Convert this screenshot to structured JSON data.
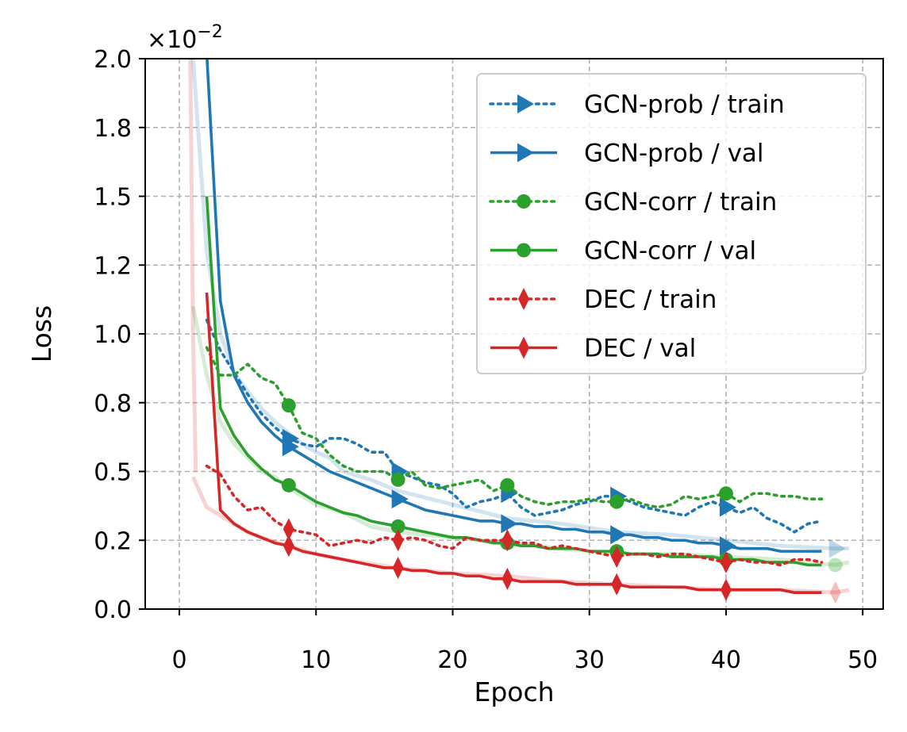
{
  "chart_data": {
    "type": "line",
    "title": "",
    "xlabel": "Epoch",
    "ylabel": "Loss",
    "scale_label": "×10",
    "scale_exponent": "−2",
    "xlim": [
      -2.5,
      51.5
    ],
    "ylim": [
      0,
      2.0
    ],
    "xticks": [
      0,
      10,
      20,
      30,
      40,
      50
    ],
    "xtick_labels": [
      "0",
      "10",
      "20",
      "30",
      "40",
      "50"
    ],
    "yticks": [
      0.0,
      0.25,
      0.5,
      0.75,
      1.0,
      1.25,
      1.5,
      1.75,
      2.0
    ],
    "ytick_labels": [
      "0.0",
      "0.2",
      "0.5",
      "0.8",
      "1.0",
      "1.2",
      "1.5",
      "1.8",
      "2.0"
    ],
    "grid": true,
    "legend_position": "top-right",
    "series": [
      {
        "name": "GCN-prob / train",
        "color": "#1f77b4",
        "style": "dotted",
        "marker": "triangle-right",
        "x": [
          2,
          3,
          4,
          5,
          6,
          7,
          8,
          9,
          10,
          11,
          12,
          13,
          14,
          15,
          16,
          17,
          18,
          19,
          20,
          21,
          22,
          23,
          24,
          25,
          26,
          27,
          28,
          29,
          30,
          31,
          32,
          33,
          34,
          35,
          36,
          37,
          38,
          39,
          40,
          41,
          42,
          43,
          44,
          45,
          46,
          47
        ],
        "values": [
          1.05,
          0.94,
          0.86,
          0.78,
          0.71,
          0.66,
          0.62,
          0.6,
          0.59,
          0.62,
          0.62,
          0.6,
          0.57,
          0.57,
          0.5,
          0.48,
          0.46,
          0.45,
          0.42,
          0.37,
          0.39,
          0.4,
          0.42,
          0.37,
          0.34,
          0.35,
          0.36,
          0.38,
          0.39,
          0.41,
          0.41,
          0.39,
          0.37,
          0.36,
          0.35,
          0.34,
          0.37,
          0.39,
          0.37,
          0.35,
          0.37,
          0.33,
          0.31,
          0.28,
          0.31,
          0.32
        ],
        "marker_x": [
          8,
          16,
          24,
          32,
          40
        ],
        "marker_values": [
          0.62,
          0.5,
          0.42,
          0.41,
          0.37
        ]
      },
      {
        "name": "GCN-prob / val",
        "color": "#1f77b4",
        "style": "solid",
        "marker": "triangle-right",
        "x": [
          2,
          3,
          4,
          5,
          6,
          7,
          8,
          9,
          10,
          11,
          12,
          13,
          14,
          15,
          16,
          17,
          18,
          19,
          20,
          21,
          22,
          23,
          24,
          25,
          26,
          27,
          28,
          29,
          30,
          31,
          32,
          33,
          34,
          35,
          36,
          37,
          38,
          39,
          40,
          41,
          42,
          43,
          44,
          45,
          46,
          47
        ],
        "values": [
          2.02,
          1.12,
          0.85,
          0.75,
          0.68,
          0.63,
          0.59,
          0.56,
          0.53,
          0.5,
          0.48,
          0.46,
          0.44,
          0.42,
          0.4,
          0.38,
          0.36,
          0.35,
          0.34,
          0.33,
          0.32,
          0.32,
          0.31,
          0.31,
          0.3,
          0.3,
          0.29,
          0.29,
          0.28,
          0.28,
          0.27,
          0.27,
          0.26,
          0.26,
          0.25,
          0.25,
          0.24,
          0.24,
          0.23,
          0.22,
          0.22,
          0.22,
          0.21,
          0.21,
          0.21,
          0.21
        ],
        "marker_x": [
          8,
          16,
          24,
          32,
          40
        ],
        "marker_values": [
          0.59,
          0.4,
          0.31,
          0.27,
          0.23
        ]
      },
      {
        "name": "GCN-corr / train",
        "color": "#2ca02c",
        "style": "dotted",
        "marker": "circle",
        "x": [
          2,
          3,
          4,
          5,
          6,
          7,
          8,
          9,
          10,
          11,
          12,
          13,
          14,
          15,
          16,
          17,
          18,
          19,
          20,
          21,
          22,
          23,
          24,
          25,
          26,
          27,
          28,
          29,
          30,
          31,
          32,
          33,
          34,
          35,
          36,
          37,
          38,
          39,
          40,
          41,
          42,
          43,
          44,
          45,
          46,
          47
        ],
        "values": [
          0.95,
          0.85,
          0.85,
          0.89,
          0.84,
          0.82,
          0.74,
          0.64,
          0.62,
          0.56,
          0.52,
          0.5,
          0.5,
          0.5,
          0.47,
          0.5,
          0.45,
          0.44,
          0.45,
          0.46,
          0.47,
          0.43,
          0.45,
          0.41,
          0.39,
          0.38,
          0.39,
          0.39,
          0.4,
          0.39,
          0.39,
          0.4,
          0.38,
          0.37,
          0.38,
          0.41,
          0.4,
          0.41,
          0.42,
          0.39,
          0.42,
          0.42,
          0.41,
          0.41,
          0.4,
          0.4
        ],
        "marker_x": [
          8,
          16,
          24,
          32,
          40
        ],
        "marker_values": [
          0.74,
          0.47,
          0.45,
          0.39,
          0.42
        ]
      },
      {
        "name": "GCN-corr / val",
        "color": "#2ca02c",
        "style": "solid",
        "marker": "circle",
        "x": [
          2,
          3,
          4,
          5,
          6,
          7,
          8,
          9,
          10,
          11,
          12,
          13,
          14,
          15,
          16,
          17,
          18,
          19,
          20,
          21,
          22,
          23,
          24,
          25,
          26,
          27,
          28,
          29,
          30,
          31,
          32,
          33,
          34,
          35,
          36,
          37,
          38,
          39,
          40,
          41,
          42,
          43,
          44,
          45,
          46,
          47
        ],
        "values": [
          1.5,
          0.73,
          0.63,
          0.56,
          0.51,
          0.47,
          0.45,
          0.42,
          0.39,
          0.37,
          0.35,
          0.34,
          0.32,
          0.31,
          0.3,
          0.29,
          0.28,
          0.27,
          0.26,
          0.26,
          0.25,
          0.24,
          0.24,
          0.23,
          0.23,
          0.22,
          0.22,
          0.22,
          0.21,
          0.21,
          0.21,
          0.2,
          0.2,
          0.2,
          0.19,
          0.19,
          0.19,
          0.19,
          0.18,
          0.18,
          0.18,
          0.17,
          0.17,
          0.17,
          0.16,
          0.16
        ],
        "marker_x": [
          8,
          16,
          24,
          32,
          40
        ],
        "marker_values": [
          0.45,
          0.3,
          0.24,
          0.21,
          0.18
        ]
      },
      {
        "name": "DEC / train",
        "color": "#d62728",
        "style": "dotted",
        "marker": "thin-diamond",
        "x": [
          2,
          3,
          4,
          5,
          6,
          7,
          8,
          9,
          10,
          11,
          12,
          13,
          14,
          15,
          16,
          17,
          18,
          19,
          20,
          21,
          22,
          23,
          24,
          25,
          26,
          27,
          28,
          29,
          30,
          31,
          32,
          33,
          34,
          35,
          36,
          37,
          38,
          39,
          40,
          41,
          42,
          43,
          44,
          45,
          46,
          47
        ],
        "values": [
          0.52,
          0.49,
          0.41,
          0.36,
          0.37,
          0.32,
          0.29,
          0.28,
          0.27,
          0.23,
          0.24,
          0.25,
          0.24,
          0.26,
          0.25,
          0.26,
          0.25,
          0.23,
          0.22,
          0.26,
          0.25,
          0.25,
          0.25,
          0.24,
          0.24,
          0.22,
          0.23,
          0.22,
          0.21,
          0.2,
          0.19,
          0.2,
          0.2,
          0.19,
          0.2,
          0.2,
          0.19,
          0.18,
          0.17,
          0.18,
          0.17,
          0.17,
          0.16,
          0.18,
          0.18,
          0.17
        ],
        "marker_x": [
          8,
          16,
          24,
          32,
          40
        ],
        "marker_values": [
          0.29,
          0.25,
          0.25,
          0.19,
          0.17
        ]
      },
      {
        "name": "DEC / val",
        "color": "#d62728",
        "style": "solid",
        "marker": "thin-diamond",
        "x": [
          2,
          3,
          4,
          5,
          6,
          7,
          8,
          9,
          10,
          11,
          12,
          13,
          14,
          15,
          16,
          17,
          18,
          19,
          20,
          21,
          22,
          23,
          24,
          25,
          26,
          27,
          28,
          29,
          30,
          31,
          32,
          33,
          34,
          35,
          36,
          37,
          38,
          39,
          40,
          41,
          42,
          43,
          44,
          45,
          46,
          47
        ],
        "values": [
          1.15,
          0.36,
          0.31,
          0.28,
          0.26,
          0.24,
          0.23,
          0.21,
          0.2,
          0.19,
          0.18,
          0.17,
          0.16,
          0.15,
          0.15,
          0.14,
          0.14,
          0.13,
          0.13,
          0.12,
          0.12,
          0.11,
          0.11,
          0.1,
          0.1,
          0.1,
          0.1,
          0.09,
          0.09,
          0.09,
          0.09,
          0.08,
          0.08,
          0.08,
          0.08,
          0.08,
          0.07,
          0.07,
          0.07,
          0.07,
          0.07,
          0.07,
          0.07,
          0.06,
          0.06,
          0.06
        ],
        "marker_x": [
          8,
          16,
          24,
          32,
          40
        ],
        "marker_values": [
          0.23,
          0.15,
          0.11,
          0.09,
          0.07
        ]
      }
    ],
    "faded_series": [
      {
        "color": "#1f77b4",
        "x": [
          1,
          2,
          3,
          4,
          5,
          6,
          7,
          8,
          9,
          10,
          11,
          12,
          14,
          16,
          20,
          24,
          28,
          32,
          36,
          40,
          44,
          48,
          49
        ],
        "values": [
          2.0,
          1.3,
          1.0,
          0.86,
          0.79,
          0.73,
          0.68,
          0.64,
          0.6,
          0.57,
          0.55,
          0.5,
          0.47,
          0.43,
          0.38,
          0.33,
          0.31,
          0.28,
          0.27,
          0.25,
          0.23,
          0.22,
          0.22
        ],
        "end_marker": true
      },
      {
        "color": "#2ca02c",
        "x": [
          1,
          2,
          3,
          4,
          5,
          6,
          7,
          8,
          10,
          12,
          14,
          16,
          20,
          24,
          28,
          32,
          36,
          40,
          44,
          48,
          49
        ],
        "values": [
          1.1,
          0.85,
          0.68,
          0.6,
          0.55,
          0.5,
          0.48,
          0.44,
          0.38,
          0.35,
          0.3,
          0.28,
          0.26,
          0.24,
          0.22,
          0.2,
          0.2,
          0.19,
          0.18,
          0.16,
          0.17
        ],
        "end_marker": true
      },
      {
        "color": "#d62728",
        "x": [
          1,
          2,
          3,
          4,
          5,
          6,
          8,
          10,
          12,
          16,
          20,
          24,
          28,
          32,
          36,
          40,
          44,
          48,
          49
        ],
        "values": [
          0.48,
          0.37,
          0.34,
          0.31,
          0.28,
          0.26,
          0.23,
          0.2,
          0.18,
          0.15,
          0.13,
          0.12,
          0.1,
          0.09,
          0.08,
          0.07,
          0.07,
          0.06,
          0.07
        ],
        "end_marker": true
      },
      {
        "color": "#d62728",
        "x": [
          0.8,
          1.0,
          1.2
        ],
        "values": [
          2.0,
          1.0,
          0.5
        ],
        "end_marker": false
      }
    ]
  }
}
